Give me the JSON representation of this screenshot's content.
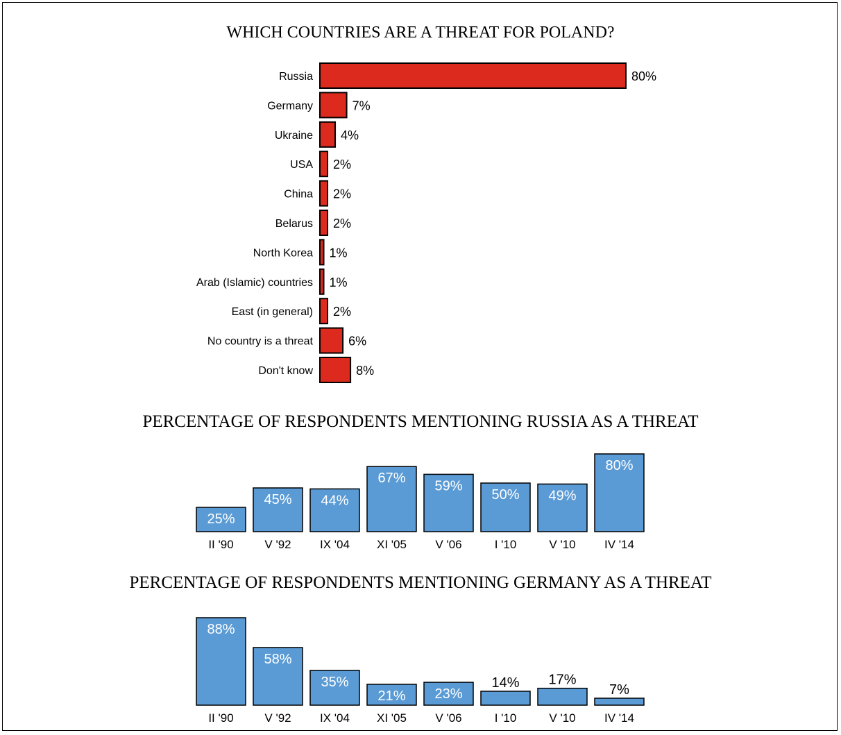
{
  "chart_data": [
    {
      "type": "bar",
      "orientation": "horizontal",
      "title": "WHICH COUNTRIES ARE A THREAT FOR POLAND?",
      "categories": [
        "Russia",
        "Germany",
        "Ukraine",
        "USA",
        "China",
        "Belarus",
        "North Korea",
        "Arab (Islamic) countries",
        "East (in general)",
        "No country is a threat",
        "Don't know"
      ],
      "values": [
        80,
        7,
        4,
        2,
        2,
        2,
        1,
        1,
        2,
        6,
        8
      ],
      "labels": [
        "80%",
        "7%",
        "4%",
        "2%",
        "2%",
        "2%",
        "1%",
        "1%",
        "2%",
        "6%",
        "8%"
      ],
      "unit": "%",
      "color": "#dc2b1e",
      "xlim": [
        0,
        80
      ],
      "grid": false,
      "legend": "none"
    },
    {
      "type": "bar",
      "title": "PERCENTAGE OF RESPONDENTS MENTIONING RUSSIA AS A THREAT",
      "categories": [
        "II '90",
        "V '92",
        "IX '04",
        "XI '05",
        "V '06",
        "I '10",
        "V '10",
        "IV '14"
      ],
      "values": [
        25,
        45,
        44,
        67,
        59,
        50,
        49,
        80
      ],
      "labels": [
        "25%",
        "45%",
        "44%",
        "67%",
        "59%",
        "50%",
        "49%",
        "80%"
      ],
      "unit": "%",
      "color": "#5b9bd5",
      "ylim": [
        0,
        80
      ],
      "grid": false,
      "legend": "none"
    },
    {
      "type": "bar",
      "title": "PERCENTAGE OF RESPONDENTS MENTIONING GERMANY AS A THREAT",
      "categories": [
        "II '90",
        "V '92",
        "IX '04",
        "XI '05",
        "V '06",
        "I '10",
        "V '10",
        "IV '14"
      ],
      "values": [
        88,
        58,
        35,
        21,
        23,
        14,
        17,
        7
      ],
      "labels": [
        "88%",
        "58%",
        "35%",
        "21%",
        "23%",
        "14%",
        "17%",
        "7%"
      ],
      "unit": "%",
      "color": "#5b9bd5",
      "ylim": [
        0,
        88
      ],
      "grid": false,
      "legend": "none"
    }
  ]
}
